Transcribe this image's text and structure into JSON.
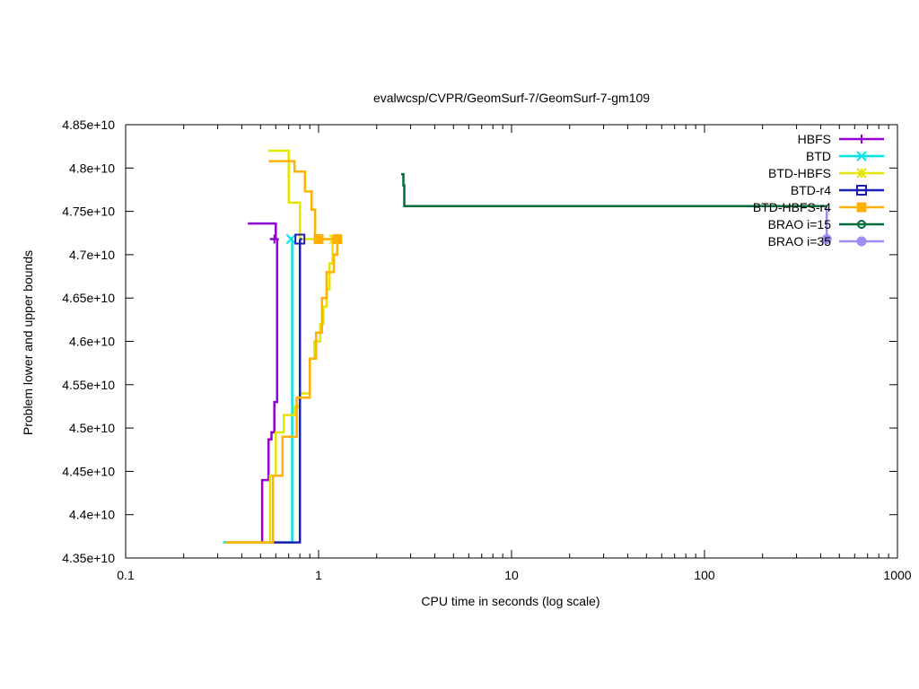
{
  "chart_data": {
    "type": "line",
    "title": "evalwcsp/CVPR/GeomSurf-7/GeomSurf-7-gm109",
    "xlabel": "CPU time in seconds (log scale)",
    "ylabel": "Problem lower and upper bounds",
    "xscale": "log",
    "xlim": [
      0.1,
      1000
    ],
    "ylim": [
      43500000000,
      48500000000
    ],
    "x_ticks": [
      {
        "value": 0.1,
        "label": "0.1"
      },
      {
        "value": 1,
        "label": "1"
      },
      {
        "value": 10,
        "label": "10"
      },
      {
        "value": 100,
        "label": "100"
      },
      {
        "value": 1000,
        "label": "1000"
      }
    ],
    "y_ticks": [
      {
        "value": 43500000000,
        "label": "4.35e+10"
      },
      {
        "value": 44000000000,
        "label": "4.4e+10"
      },
      {
        "value": 44500000000,
        "label": "4.45e+10"
      },
      {
        "value": 45000000000,
        "label": "4.5e+10"
      },
      {
        "value": 45500000000,
        "label": "4.55e+10"
      },
      {
        "value": 46000000000,
        "label": "4.6e+10"
      },
      {
        "value": 46500000000,
        "label": "4.65e+10"
      },
      {
        "value": 47000000000,
        "label": "4.7e+10"
      },
      {
        "value": 47500000000,
        "label": "4.75e+10"
      },
      {
        "value": 48000000000,
        "label": "4.8e+10"
      },
      {
        "value": 48500000000,
        "label": "4.85e+10"
      }
    ],
    "grid": false,
    "legend_position": "top-right",
    "series": [
      {
        "name": "HBFS",
        "color": "#9400d3",
        "marker": "plus",
        "lines": [
          [
            [
              0.43,
              47360000000
            ],
            [
              0.6,
              47360000000
            ],
            [
              0.6,
              47180000000
            ],
            [
              0.56,
              47180000000
            ]
          ],
          [
            [
              0.33,
              43680000000
            ],
            [
              0.51,
              43680000000
            ],
            [
              0.51,
              44400000000
            ],
            [
              0.55,
              44400000000
            ],
            [
              0.55,
              44870000000
            ],
            [
              0.57,
              44870000000
            ],
            [
              0.57,
              44950000000
            ],
            [
              0.59,
              44950000000
            ],
            [
              0.59,
              45300000000
            ],
            [
              0.61,
              45300000000
            ],
            [
              0.61,
              47180000000
            ]
          ]
        ],
        "markers": [
          [
            0.59,
            47180000000
          ]
        ]
      },
      {
        "name": "BTD",
        "color": "#00e5e5",
        "marker": "x",
        "lines": [
          [
            [
              0.72,
              47200000000
            ],
            [
              0.72,
              47180000000
            ]
          ],
          [
            [
              0.32,
              43680000000
            ],
            [
              0.73,
              43680000000
            ],
            [
              0.73,
              47180000000
            ]
          ]
        ],
        "markers": [
          [
            0.72,
            47180000000
          ]
        ]
      },
      {
        "name": "BTD-HBFS",
        "color": "#e5e500",
        "marker": "star",
        "lines": [
          [
            [
              0.55,
              48200000000
            ],
            [
              0.7,
              48200000000
            ],
            [
              0.7,
              47600000000
            ],
            [
              0.8,
              47600000000
            ],
            [
              0.8,
              47180000000
            ],
            [
              1.2,
              47180000000
            ]
          ],
          [
            [
              0.33,
              43680000000
            ],
            [
              0.56,
              43680000000
            ],
            [
              0.56,
              44450000000
            ],
            [
              0.6,
              44450000000
            ],
            [
              0.6,
              44950000000
            ],
            [
              0.66,
              44950000000
            ],
            [
              0.66,
              45150000000
            ],
            [
              0.75,
              45150000000
            ],
            [
              0.75,
              45250000000
            ],
            [
              0.8,
              45250000000
            ],
            [
              0.8,
              45400000000
            ],
            [
              0.9,
              45400000000
            ],
            [
              0.9,
              45800000000
            ],
            [
              0.95,
              45800000000
            ],
            [
              0.95,
              46000000000
            ],
            [
              1.02,
              46000000000
            ],
            [
              1.02,
              46200000000
            ],
            [
              1.06,
              46200000000
            ],
            [
              1.06,
              46400000000
            ],
            [
              1.1,
              46400000000
            ],
            [
              1.1,
              46600000000
            ],
            [
              1.14,
              46600000000
            ],
            [
              1.14,
              46900000000
            ],
            [
              1.18,
              46900000000
            ],
            [
              1.18,
              47180000000
            ]
          ]
        ],
        "markers": [
          [
            1.2,
            47180000000
          ]
        ]
      },
      {
        "name": "BTD-r4",
        "color": "#1e1eb4",
        "marker": "square-open",
        "lines": [
          [
            [
              0.8,
              47180000000
            ],
            [
              0.82,
              47180000000
            ]
          ],
          [
            [
              0.56,
              43680000000
            ],
            [
              0.8,
              43680000000
            ],
            [
              0.8,
              47180000000
            ]
          ]
        ],
        "markers": [
          [
            0.8,
            47180000000
          ]
        ]
      },
      {
        "name": "BTD-HBFS-r4",
        "color": "#ffb000",
        "marker": "square-filled",
        "lines": [
          [
            [
              0.55,
              48080000000
            ],
            [
              0.75,
              48080000000
            ],
            [
              0.75,
              47960000000
            ],
            [
              0.85,
              47960000000
            ],
            [
              0.85,
              47730000000
            ],
            [
              0.92,
              47730000000
            ],
            [
              0.92,
              47520000000
            ],
            [
              0.96,
              47520000000
            ],
            [
              0.96,
              47180000000
            ],
            [
              1.25,
              47180000000
            ]
          ],
          [
            [
              0.33,
              43680000000
            ],
            [
              0.58,
              43680000000
            ],
            [
              0.58,
              44450000000
            ],
            [
              0.65,
              44450000000
            ],
            [
              0.65,
              44900000000
            ],
            [
              0.77,
              44900000000
            ],
            [
              0.77,
              45350000000
            ],
            [
              0.9,
              45350000000
            ],
            [
              0.9,
              45800000000
            ],
            [
              0.97,
              45800000000
            ],
            [
              0.97,
              46100000000
            ],
            [
              1.04,
              46100000000
            ],
            [
              1.04,
              46500000000
            ],
            [
              1.1,
              46500000000
            ],
            [
              1.1,
              46800000000
            ],
            [
              1.2,
              46800000000
            ],
            [
              1.2,
              47000000000
            ],
            [
              1.25,
              47000000000
            ],
            [
              1.25,
              47180000000
            ]
          ]
        ],
        "markers": [
          [
            1.0,
            47180000000
          ],
          [
            1.25,
            47180000000
          ]
        ]
      },
      {
        "name": "BRAO i=15",
        "color": "#006e3c",
        "marker": "circle-open",
        "lines": [
          [
            [
              2.68,
              47930000000
            ],
            [
              2.75,
              47930000000
            ],
            [
              2.75,
              47800000000
            ],
            [
              2.78,
              47800000000
            ],
            [
              2.78,
              47560000000
            ],
            [
              430,
              47560000000
            ]
          ]
        ],
        "markers": []
      },
      {
        "name": "BRAO i=35",
        "color": "#a08cf0",
        "marker": "circle-filled",
        "lines": [
          [
            [
              430,
              47560000000
            ],
            [
              430,
              47180000000
            ]
          ]
        ],
        "markers": [
          [
            430,
            47180000000
          ]
        ]
      }
    ]
  }
}
